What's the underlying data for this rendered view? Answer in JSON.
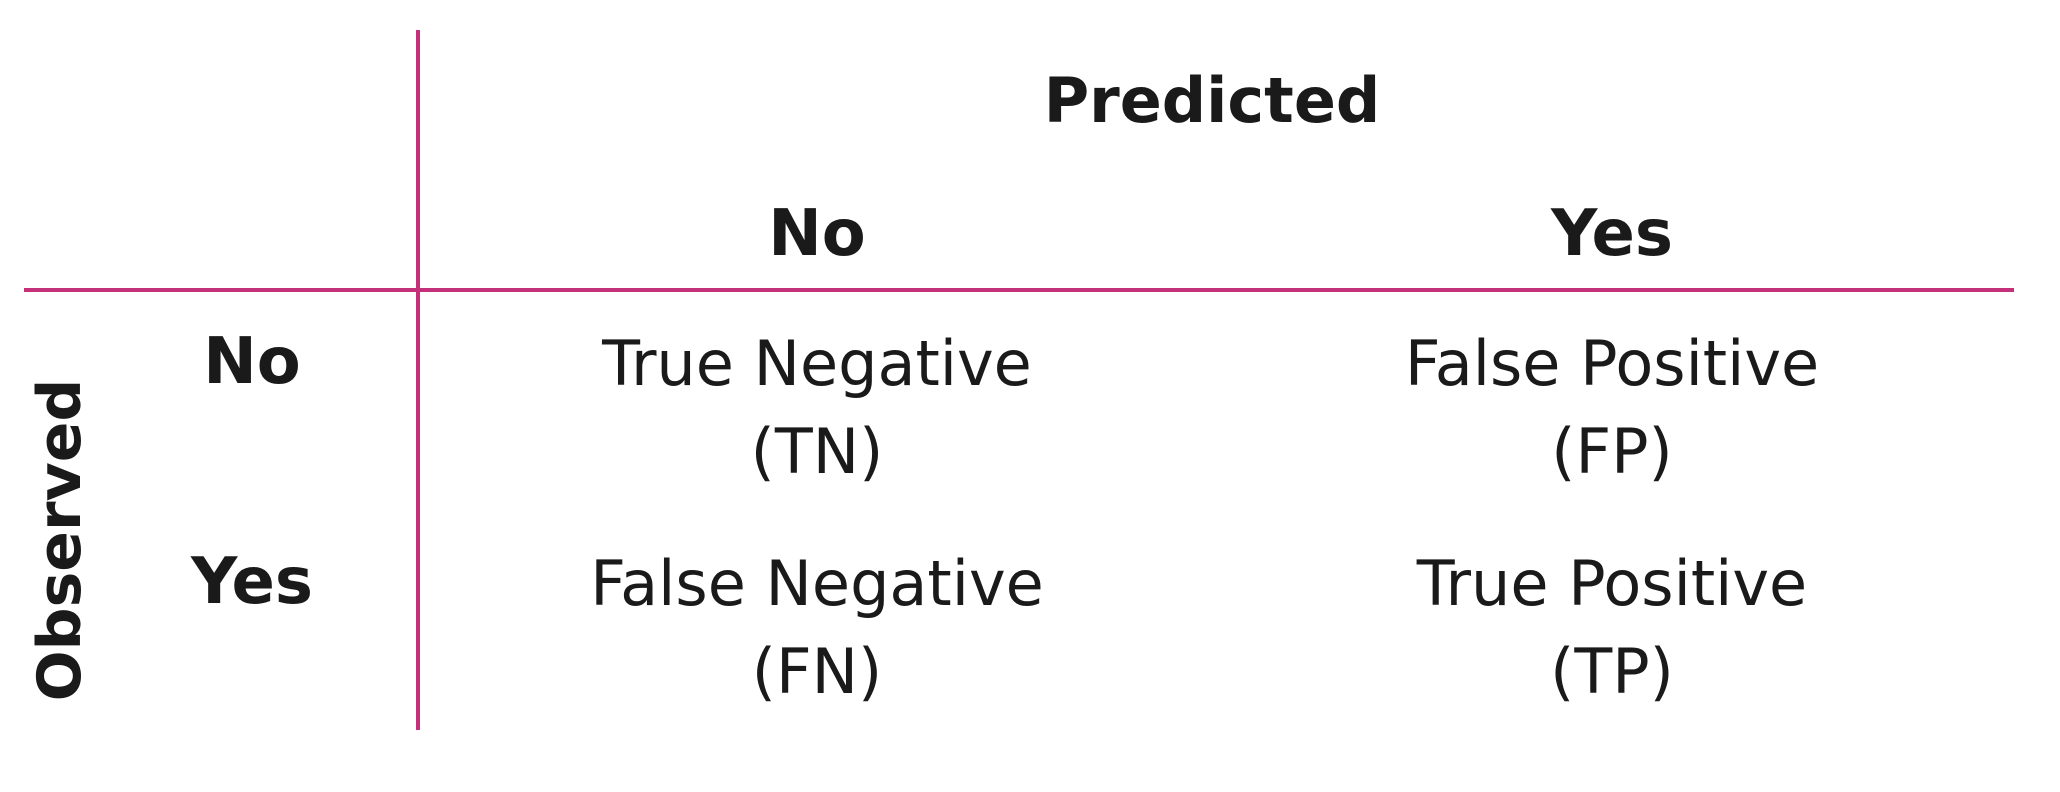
{
  "diagram": {
    "title_predicted": "Predicted",
    "title_observed": "Observed",
    "columns": [
      "No",
      "Yes"
    ],
    "rows": [
      "No",
      "Yes"
    ],
    "cells": [
      [
        {
          "name": "True Negative",
          "abbr": "(TN)"
        },
        {
          "name": "False Positive",
          "abbr": "(FP)"
        }
      ],
      [
        {
          "name": "False Negative",
          "abbr": "(FN)"
        },
        {
          "name": "True Positive",
          "abbr": "(TP)"
        }
      ]
    ],
    "line_color": "#c4307a",
    "text_color": "#1a1a1a"
  }
}
